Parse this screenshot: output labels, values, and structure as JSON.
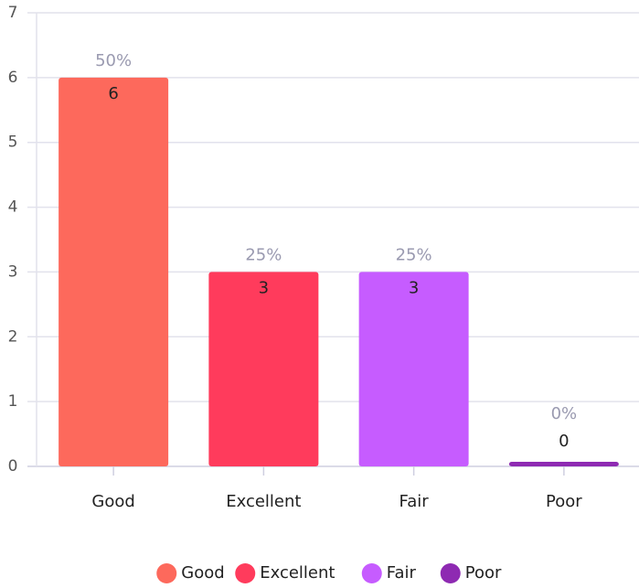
{
  "chart_data": {
    "type": "bar",
    "categories": [
      "Good",
      "Excellent",
      "Fair",
      "Poor"
    ],
    "values": [
      6,
      3,
      3,
      0
    ],
    "percent_labels": [
      "50%",
      "25%",
      "25%",
      "0%"
    ],
    "colors": [
      "#fd695c",
      "#ff3b5c",
      "#c65cff",
      "#8e2ab2"
    ],
    "ylim": [
      0,
      7
    ],
    "yticks": [
      0,
      1,
      2,
      3,
      4,
      5,
      6,
      7
    ],
    "grid": true,
    "legend": "bottom"
  }
}
